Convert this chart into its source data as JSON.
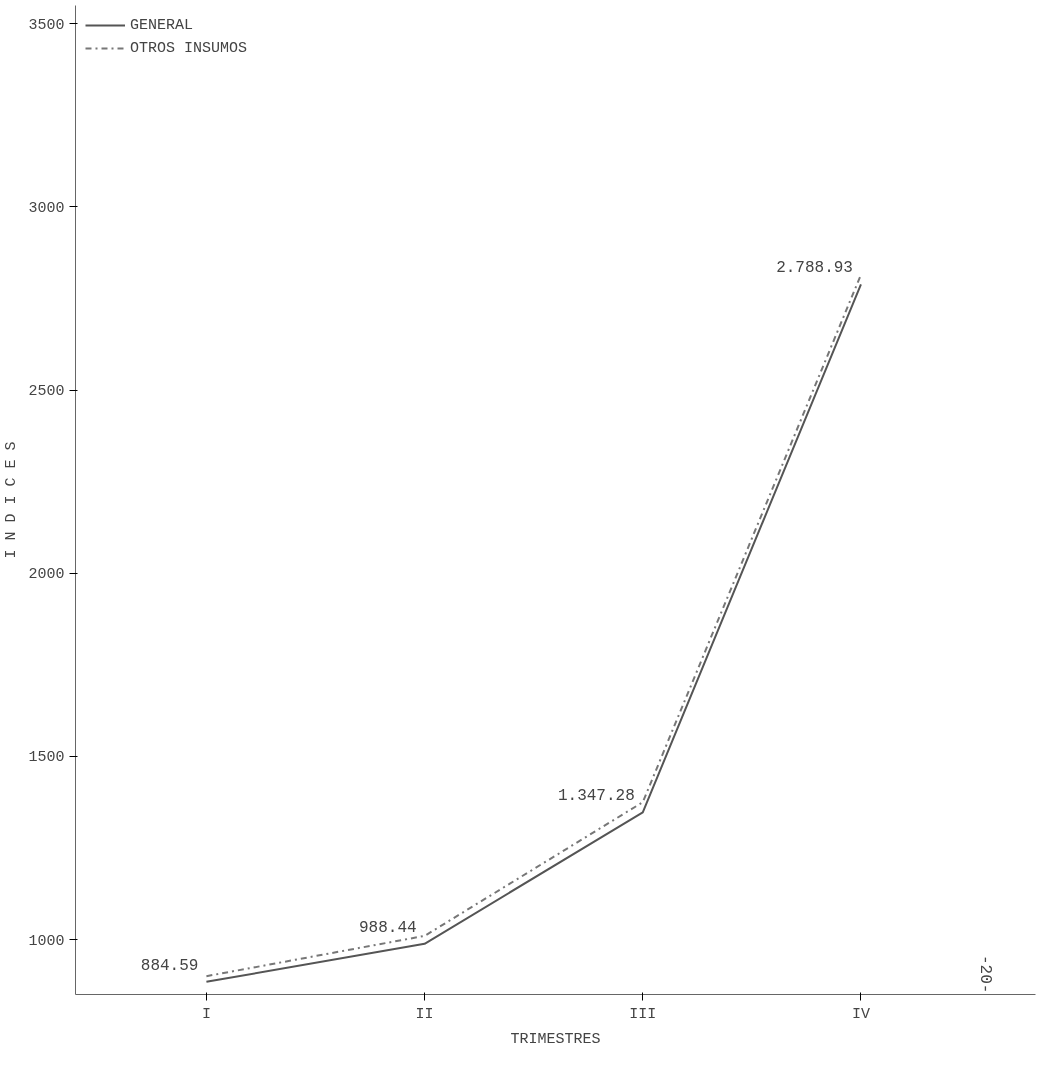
{
  "chart_data": {
    "type": "line",
    "xlabel": "TRIMESTRES",
    "ylabel": "I N D I C E S",
    "categories": [
      "I",
      "II",
      "III",
      "IV"
    ],
    "series": [
      {
        "name": "GENERAL",
        "color": "#555555",
        "line_style": "solid",
        "values": [
          884.59,
          988.44,
          1347.28,
          2788.93
        ],
        "value_labels": [
          "884.59",
          "988.44",
          "1.347.28",
          "2.788.93"
        ]
      },
      {
        "name": "OTROS INSUMOS",
        "color": "#777777",
        "line_style": "dashdot",
        "values": [
          900,
          1010,
          1375,
          2815
        ]
      }
    ],
    "ylim": [
      850,
      3550
    ],
    "yticks": [
      1000,
      1500,
      2000,
      2500,
      3000,
      3500
    ],
    "grid": false,
    "legend": "top left",
    "annotations": [
      "-20-"
    ]
  }
}
